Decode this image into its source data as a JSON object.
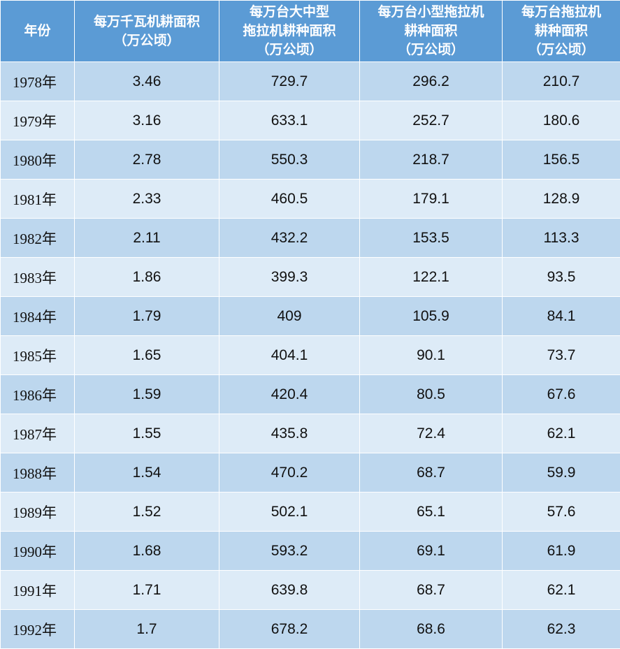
{
  "table": {
    "headers": [
      "年份",
      "每万千瓦机耕面积\n（万公顷）",
      "每万台大中型\n拖拉机耕种面积\n（万公顷）",
      "每万台小型拖拉机\n耕种面积\n（万公顷）",
      "每万台拖拉机\n耕种面积\n（万公顷）"
    ],
    "rows": [
      [
        "1978年",
        "3.46",
        "729.7",
        "296.2",
        "210.7"
      ],
      [
        "1979年",
        "3.16",
        "633.1",
        "252.7",
        "180.6"
      ],
      [
        "1980年",
        "2.78",
        "550.3",
        "218.7",
        "156.5"
      ],
      [
        "1981年",
        "2.33",
        "460.5",
        "179.1",
        "128.9"
      ],
      [
        "1982年",
        "2.11",
        "432.2",
        "153.5",
        "113.3"
      ],
      [
        "1983年",
        "1.86",
        "399.3",
        "122.1",
        "93.5"
      ],
      [
        "1984年",
        "1.79",
        "409",
        "105.9",
        "84.1"
      ],
      [
        "1985年",
        "1.65",
        "404.1",
        "90.1",
        "73.7"
      ],
      [
        "1986年",
        "1.59",
        "420.4",
        "80.5",
        "67.6"
      ],
      [
        "1987年",
        "1.55",
        "435.8",
        "72.4",
        "62.1"
      ],
      [
        "1988年",
        "1.54",
        "470.2",
        "68.7",
        "59.9"
      ],
      [
        "1989年",
        "1.52",
        "502.1",
        "65.1",
        "57.6"
      ],
      [
        "1990年",
        "1.68",
        "593.2",
        "69.1",
        "61.9"
      ],
      [
        "1991年",
        "1.71",
        "639.8",
        "68.7",
        "62.1"
      ],
      [
        "1992年",
        "1.7",
        "678.2",
        "68.6",
        "62.3"
      ]
    ]
  },
  "colors": {
    "header_bg": "#5b9bd5",
    "row_odd_bg": "#bdd7ee",
    "row_even_bg": "#ddebf7",
    "border": "#ffffff"
  }
}
